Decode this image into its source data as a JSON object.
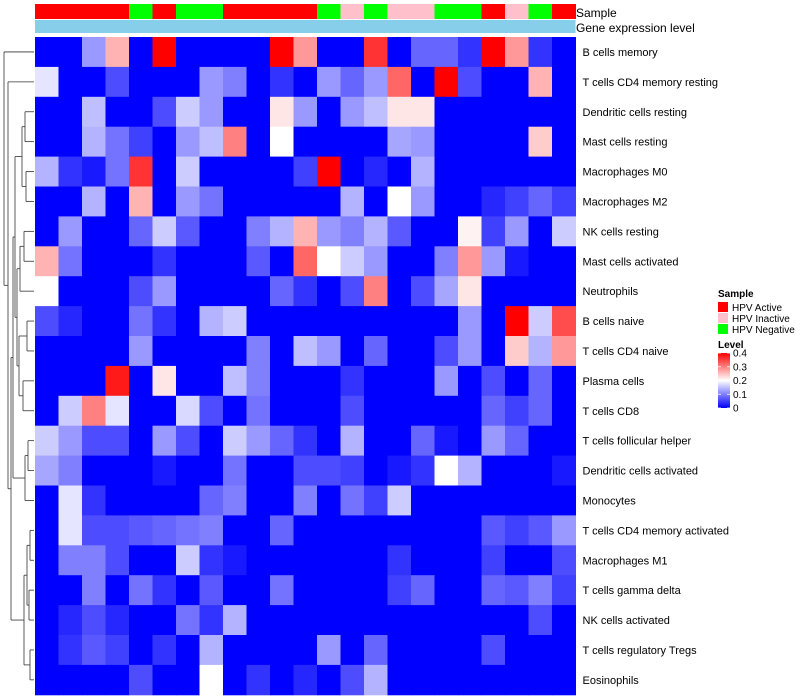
{
  "chart_data": {
    "type": "heatmap",
    "track_labels": {
      "sample": "Sample",
      "gene_expression": "Gene expression level"
    },
    "sample_legend": {
      "title": "Sample",
      "entries": [
        {
          "label": "HPV Active",
          "color": "#ff0000"
        },
        {
          "label": "HPV Inactive",
          "color": "#ffc0cb"
        },
        {
          "label": "HPV Negative",
          "color": "#00ff00"
        }
      ]
    },
    "level_legend": {
      "title": "Level",
      "ticks": [
        "0.4",
        "0.3",
        "0.2",
        "0.1",
        "0"
      ],
      "tick_values": [
        0.4,
        0.3,
        0.2,
        0.1,
        0
      ],
      "range": [
        0,
        0.4
      ],
      "low_color": "#0000ff",
      "mid_color": "#ffffff",
      "high_color": "#ff0000"
    },
    "sample_annotation": [
      "A",
      "A",
      "A",
      "A",
      "N",
      "A",
      "N",
      "N",
      "A",
      "A",
      "A",
      "A",
      "N",
      "I",
      "N",
      "I",
      "I",
      "N",
      "N",
      "A",
      "I",
      "N",
      "A"
    ],
    "gene_expression_color": "#87ceeb",
    "rows": [
      "B cells memory",
      "T cells CD4 memory resting",
      "Dendritic cells resting",
      "Mast cells resting",
      "Macrophages M0",
      "Macrophages M2",
      "NK cells resting",
      "Mast cells activated",
      "Neutrophils",
      "B cells naive",
      "T cells CD4 naive",
      "Plasma cells",
      "T cells CD8",
      "T cells follicular helper",
      "Dendritic cells activated",
      "Monocytes",
      "T cells CD4 memory activated",
      "Macrophages M1",
      "T cells gamma delta",
      "NK cells activated",
      "T cells regulatory  Tregs",
      "Eosinophils"
    ],
    "values": [
      [
        0.0,
        0.0,
        0.12,
        0.26,
        0.0,
        0.4,
        0.0,
        0.0,
        0.0,
        0.0,
        0.4,
        0.28,
        0.0,
        0.0,
        0.36,
        0.0,
        0.08,
        0.08,
        0.04,
        0.4,
        0.28,
        0.04,
        0.0
      ],
      [
        0.18,
        0.0,
        0.0,
        0.06,
        0.0,
        0.0,
        0.0,
        0.12,
        0.1,
        0.0,
        0.04,
        0.0,
        0.12,
        0.08,
        0.12,
        0.32,
        0.0,
        0.4,
        0.06,
        0.0,
        0.0,
        0.26,
        0.0
      ],
      [
        0.0,
        0.0,
        0.15,
        0.0,
        0.0,
        0.06,
        0.16,
        0.12,
        0.0,
        0.0,
        0.22,
        0.12,
        0.0,
        0.12,
        0.15,
        0.22,
        0.22,
        0.0,
        0.0,
        0.0,
        0.0,
        0.0,
        0.0
      ],
      [
        0.0,
        0.0,
        0.14,
        0.09,
        0.05,
        0.0,
        0.12,
        0.15,
        0.3,
        0.0,
        0.2,
        0.0,
        0.0,
        0.0,
        0.0,
        0.13,
        0.12,
        0.0,
        0.0,
        0.0,
        0.0,
        0.24,
        0.0
      ],
      [
        0.14,
        0.04,
        0.02,
        0.09,
        0.36,
        0.0,
        0.16,
        0.0,
        0.0,
        0.0,
        0.0,
        0.05,
        0.4,
        0.0,
        0.03,
        0.0,
        0.14,
        0.0,
        0.0,
        0.0,
        0.0,
        0.0,
        0.0
      ],
      [
        0.0,
        0.0,
        0.14,
        0.0,
        0.26,
        0.0,
        0.12,
        0.09,
        0.0,
        0.0,
        0.0,
        0.0,
        0.0,
        0.14,
        0.0,
        0.2,
        0.12,
        0.0,
        0.0,
        0.03,
        0.05,
        0.08,
        0.05
      ],
      [
        0.0,
        0.12,
        0.0,
        0.0,
        0.08,
        0.16,
        0.07,
        0.0,
        0.0,
        0.1,
        0.14,
        0.26,
        0.12,
        0.1,
        0.14,
        0.07,
        0.0,
        0.0,
        0.21,
        0.05,
        0.12,
        0.0,
        0.16
      ],
      [
        0.26,
        0.09,
        0.0,
        0.0,
        0.0,
        0.04,
        0.0,
        0.0,
        0.0,
        0.07,
        0.0,
        0.32,
        0.2,
        0.16,
        0.12,
        0.0,
        0.0,
        0.1,
        0.28,
        0.12,
        0.02,
        0.0,
        0.0
      ],
      [
        0.2,
        0.0,
        0.0,
        0.0,
        0.06,
        0.12,
        0.0,
        0.0,
        0.0,
        0.0,
        0.08,
        0.04,
        0.0,
        0.06,
        0.3,
        0.0,
        0.06,
        0.13,
        0.22,
        0.0,
        0.0,
        0.0,
        0.0
      ],
      [
        0.06,
        0.03,
        0.0,
        0.0,
        0.09,
        0.04,
        0.0,
        0.14,
        0.16,
        0.0,
        0.0,
        0.0,
        0.0,
        0.0,
        0.0,
        0.0,
        0.0,
        0.0,
        0.12,
        0.0,
        0.4,
        0.16,
        0.34
      ],
      [
        0.0,
        0.0,
        0.0,
        0.0,
        0.12,
        0.0,
        0.0,
        0.0,
        0.0,
        0.1,
        0.0,
        0.15,
        0.12,
        0.0,
        0.08,
        0.0,
        0.0,
        0.06,
        0.12,
        0.0,
        0.24,
        0.14,
        0.28
      ],
      [
        0.0,
        0.0,
        0.0,
        0.38,
        0.0,
        0.22,
        0.0,
        0.0,
        0.15,
        0.1,
        0.0,
        0.0,
        0.0,
        0.04,
        0.0,
        0.0,
        0.0,
        0.12,
        0.0,
        0.06,
        0.0,
        0.08,
        0.0
      ],
      [
        0.0,
        0.16,
        0.3,
        0.18,
        0.0,
        0.0,
        0.17,
        0.06,
        0.0,
        0.09,
        0.0,
        0.0,
        0.0,
        0.06,
        0.0,
        0.0,
        0.0,
        0.0,
        0.0,
        0.08,
        0.05,
        0.08,
        0.0
      ],
      [
        0.16,
        0.12,
        0.06,
        0.06,
        0.0,
        0.12,
        0.06,
        0.0,
        0.16,
        0.12,
        0.08,
        0.04,
        0.0,
        0.14,
        0.0,
        0.0,
        0.08,
        0.02,
        0.0,
        0.12,
        0.08,
        0.0,
        0.0
      ],
      [
        0.13,
        0.1,
        0.0,
        0.0,
        0.0,
        0.02,
        0.0,
        0.0,
        0.09,
        0.0,
        0.0,
        0.06,
        0.06,
        0.05,
        0.0,
        0.02,
        0.04,
        0.2,
        0.14,
        0.0,
        0.0,
        0.0,
        0.02
      ],
      [
        0.0,
        0.18,
        0.04,
        0.0,
        0.0,
        0.0,
        0.0,
        0.08,
        0.1,
        0.0,
        0.0,
        0.1,
        0.0,
        0.09,
        0.05,
        0.16,
        0.0,
        0.0,
        0.0,
        0.0,
        0.0,
        0.0,
        0.0
      ],
      [
        0.0,
        0.18,
        0.06,
        0.06,
        0.07,
        0.08,
        0.09,
        0.1,
        0.0,
        0.0,
        0.08,
        0.0,
        0.0,
        0.0,
        0.0,
        0.0,
        0.0,
        0.0,
        0.0,
        0.07,
        0.05,
        0.07,
        0.12
      ],
      [
        0.0,
        0.1,
        0.1,
        0.06,
        0.0,
        0.0,
        0.16,
        0.04,
        0.02,
        0.0,
        0.0,
        0.0,
        0.0,
        0.0,
        0.0,
        0.04,
        0.0,
        0.0,
        0.0,
        0.05,
        0.0,
        0.0,
        0.06
      ],
      [
        0.0,
        0.0,
        0.1,
        0.0,
        0.09,
        0.04,
        0.0,
        0.07,
        0.0,
        0.0,
        0.09,
        0.0,
        0.0,
        0.0,
        0.0,
        0.05,
        0.08,
        0.0,
        0.0,
        0.08,
        0.07,
        0.1,
        0.05
      ],
      [
        0.0,
        0.03,
        0.06,
        0.03,
        0.0,
        0.0,
        0.09,
        0.04,
        0.14,
        0.0,
        0.0,
        0.0,
        0.0,
        0.0,
        0.0,
        0.0,
        0.0,
        0.0,
        0.0,
        0.0,
        0.0,
        0.06,
        0.0
      ],
      [
        0.0,
        0.04,
        0.07,
        0.05,
        0.0,
        0.04,
        0.0,
        0.14,
        0.0,
        0.0,
        0.0,
        0.0,
        0.12,
        0.0,
        0.08,
        0.0,
        0.0,
        0.0,
        0.0,
        0.06,
        0.0,
        0.0,
        0.0
      ],
      [
        0.0,
        0.0,
        0.0,
        0.0,
        0.06,
        0.0,
        0.0,
        0.2,
        0.0,
        0.04,
        0.0,
        0.03,
        0.0,
        0.06,
        0.14,
        0.0,
        0.0,
        0.0,
        0.0,
        0.0,
        0.0,
        0.0,
        0.0
      ]
    ]
  }
}
